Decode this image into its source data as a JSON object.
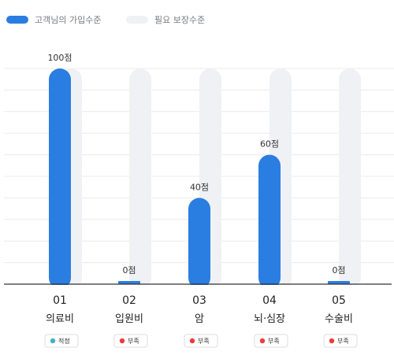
{
  "legend": {
    "primary": {
      "label": "고객님의 가입수준",
      "color": "#2a7de1"
    },
    "secondary": {
      "label": "필요 보장수준",
      "color": "#f0f1f4"
    }
  },
  "chart_data": {
    "type": "bar",
    "title": "",
    "xlabel": "",
    "ylabel": "",
    "ylim": [
      0,
      100
    ],
    "grid": true,
    "legend_position": "top-left",
    "categories": [
      {
        "number": "01",
        "name": "의료비",
        "value": 100,
        "value_label": "100점",
        "required": 100,
        "status": "적정",
        "status_color": "#3fb3c6"
      },
      {
        "number": "02",
        "name": "입원비",
        "value": 0,
        "value_label": "0점",
        "required": 100,
        "status": "부족",
        "status_color": "#ee3b3b"
      },
      {
        "number": "03",
        "name": "암",
        "value": 40,
        "value_label": "40점",
        "required": 100,
        "status": "부족",
        "status_color": "#ee3b3b"
      },
      {
        "number": "04",
        "name": "뇌·심장",
        "value": 60,
        "value_label": "60점",
        "required": 100,
        "status": "부족",
        "status_color": "#ee3b3b"
      },
      {
        "number": "05",
        "name": "수술비",
        "value": 0,
        "value_label": "0점",
        "required": 100,
        "status": "부족",
        "status_color": "#ee3b3b"
      }
    ],
    "series": [
      {
        "name": "고객님의 가입수준",
        "values": [
          100,
          0,
          40,
          60,
          0
        ]
      },
      {
        "name": "필요 보장수준",
        "values": [
          100,
          100,
          100,
          100,
          100
        ]
      }
    ]
  }
}
